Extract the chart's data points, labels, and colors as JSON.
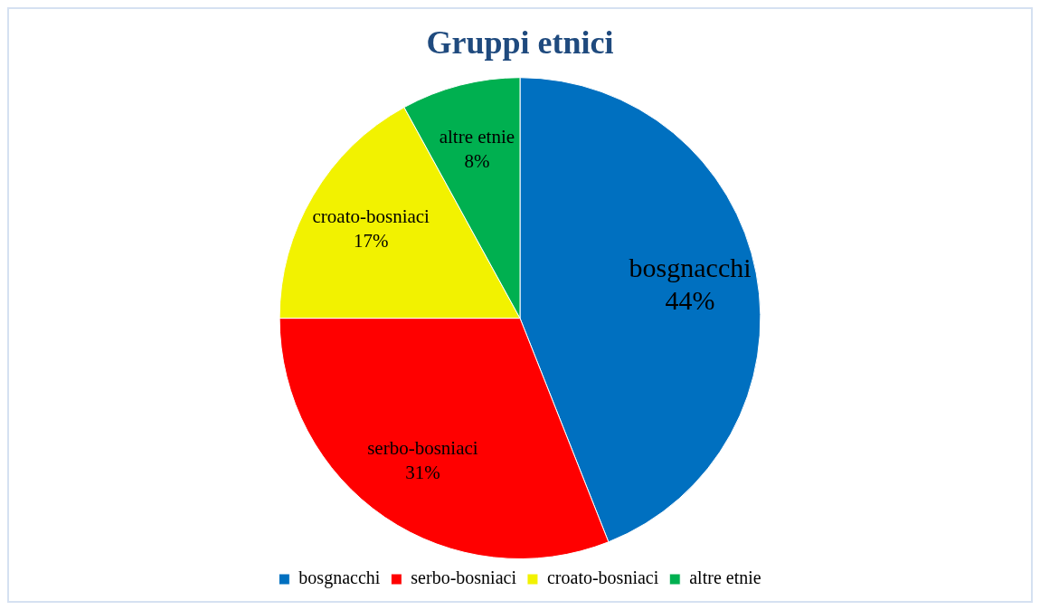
{
  "chart_data": {
    "type": "pie",
    "title": "Gruppi etnici",
    "categories": [
      "bosgnacchi",
      "serbo-bosniaci",
      "croato-bosniaci",
      "altre etnie"
    ],
    "values": [
      44,
      31,
      17,
      8
    ],
    "value_labels": [
      "44%",
      "31%",
      "17%",
      "8%"
    ],
    "colors": [
      "#0070c0",
      "#ff0000",
      "#f2f200",
      "#00b050"
    ],
    "legend": "bottom"
  }
}
